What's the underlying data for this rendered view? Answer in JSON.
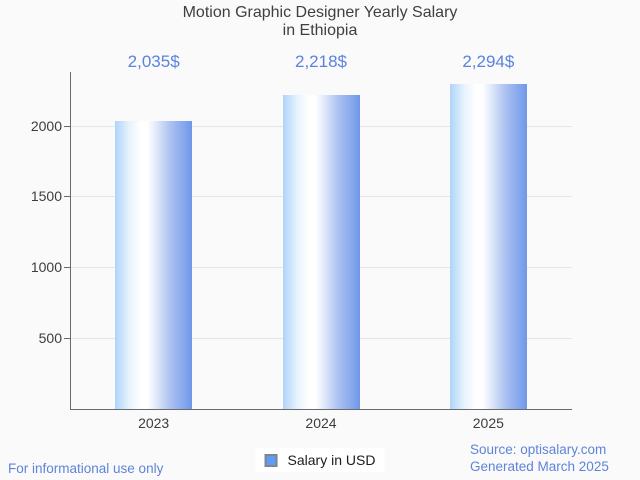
{
  "title": {
    "line1": "Motion Graphic Designer Yearly Salary",
    "line2": "in Ethiopia"
  },
  "chart_data": {
    "type": "bar",
    "categories": [
      "2023",
      "2024",
      "2025"
    ],
    "series": [
      {
        "name": "Salary in USD",
        "values": [
          2035,
          2218,
          2294
        ]
      }
    ],
    "value_labels": [
      "2,035$",
      "2,218$",
      "2,294$"
    ],
    "xlabel": "",
    "ylabel": "",
    "y_ticks": [
      500,
      1000,
      1500,
      2000
    ],
    "ylim": [
      0,
      2385
    ],
    "grid": true,
    "legend_position": "bottom",
    "bar_gradient_left": "#aed4f8",
    "bar_gradient_mid": "#ffffff",
    "bar_gradient_right": "#6f97e9"
  },
  "legend": {
    "label": "Salary in USD",
    "marker_color": "#5f9df2"
  },
  "footer": {
    "disclaimer": "For informational use only",
    "source_line1": "Source: optisalary.com",
    "source_line2": "Generated March 2025"
  },
  "colors": {
    "background": "#fafafa",
    "title_text": "#404040",
    "axis_text": "#3d3d3d",
    "value_label_text": "#5b82e0",
    "footer_text": "#5e84da",
    "axis_line": "#6b6b6b",
    "gridline": "#e5e5e5"
  }
}
